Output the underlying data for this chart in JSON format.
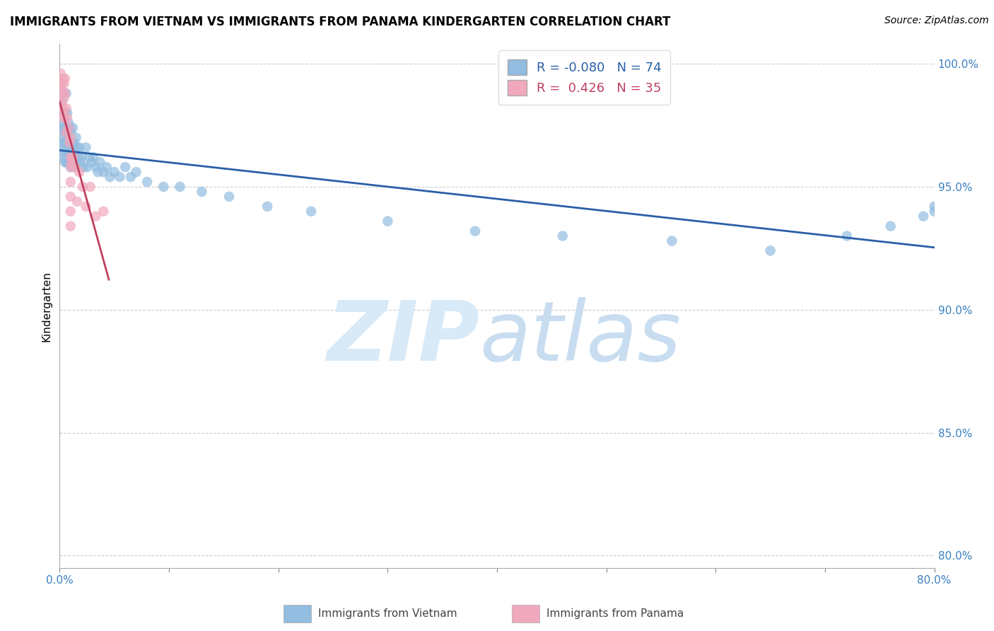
{
  "title": "IMMIGRANTS FROM VIETNAM VS IMMIGRANTS FROM PANAMA KINDERGARTEN CORRELATION CHART",
  "source": "Source: ZipAtlas.com",
  "ylabel": "Kindergarten",
  "legend_label_vietnam": "Immigrants from Vietnam",
  "legend_label_panama": "Immigrants from Panama",
  "vietnam_color": "#92bce0",
  "panama_color": "#f0a8bc",
  "vietnam_line_color": "#2a5fa8",
  "panama_line_color": "#c04060",
  "R_vietnam": -0.08,
  "N_vietnam": 74,
  "R_panama": 0.426,
  "N_panama": 35,
  "xlim": [
    0.0,
    0.8
  ],
  "ylim": [
    0.795,
    1.008
  ],
  "ytick_positions": [
    0.8,
    0.85,
    0.9,
    0.95,
    1.0
  ],
  "xtick_positions": [
    0.0,
    0.1,
    0.2,
    0.3,
    0.4,
    0.5,
    0.6,
    0.7,
    0.8
  ],
  "vietnam_x": [
    0.001,
    0.001,
    0.002,
    0.002,
    0.002,
    0.003,
    0.003,
    0.003,
    0.004,
    0.004,
    0.005,
    0.005,
    0.005,
    0.006,
    0.006,
    0.006,
    0.007,
    0.007,
    0.007,
    0.008,
    0.008,
    0.009,
    0.009,
    0.01,
    0.01,
    0.01,
    0.011,
    0.011,
    0.012,
    0.012,
    0.013,
    0.013,
    0.014,
    0.015,
    0.015,
    0.016,
    0.017,
    0.018,
    0.019,
    0.02,
    0.022,
    0.024,
    0.025,
    0.027,
    0.029,
    0.031,
    0.033,
    0.035,
    0.037,
    0.04,
    0.043,
    0.046,
    0.05,
    0.055,
    0.06,
    0.065,
    0.07,
    0.08,
    0.095,
    0.11,
    0.13,
    0.155,
    0.19,
    0.23,
    0.3,
    0.38,
    0.46,
    0.56,
    0.65,
    0.72,
    0.76,
    0.79,
    0.8,
    0.8
  ],
  "vietnam_y": [
    0.974,
    0.97,
    0.976,
    0.966,
    0.985,
    0.988,
    0.968,
    0.962,
    0.974,
    0.964,
    0.98,
    0.972,
    0.96,
    0.988,
    0.968,
    0.96,
    0.98,
    0.972,
    0.96,
    0.976,
    0.964,
    0.974,
    0.966,
    0.972,
    0.964,
    0.958,
    0.968,
    0.96,
    0.974,
    0.964,
    0.968,
    0.958,
    0.964,
    0.97,
    0.96,
    0.966,
    0.962,
    0.966,
    0.96,
    0.962,
    0.958,
    0.966,
    0.958,
    0.962,
    0.96,
    0.962,
    0.958,
    0.956,
    0.96,
    0.956,
    0.958,
    0.954,
    0.956,
    0.954,
    0.958,
    0.954,
    0.956,
    0.952,
    0.95,
    0.95,
    0.948,
    0.946,
    0.942,
    0.94,
    0.936,
    0.932,
    0.93,
    0.928,
    0.924,
    0.93,
    0.934,
    0.938,
    0.94,
    0.942
  ],
  "panama_x": [
    0.001,
    0.001,
    0.001,
    0.002,
    0.002,
    0.003,
    0.003,
    0.003,
    0.004,
    0.004,
    0.004,
    0.005,
    0.005,
    0.006,
    0.006,
    0.007,
    0.008,
    0.009,
    0.01,
    0.011,
    0.012,
    0.014,
    0.016,
    0.018,
    0.021,
    0.024,
    0.028,
    0.033,
    0.04,
    0.01,
    0.01,
    0.01,
    0.01,
    0.01,
    0.01
  ],
  "panama_y": [
    0.99,
    0.996,
    0.984,
    0.992,
    0.98,
    0.994,
    0.988,
    0.982,
    0.992,
    0.986,
    0.978,
    0.994,
    0.988,
    0.982,
    0.972,
    0.978,
    0.974,
    0.968,
    0.97,
    0.96,
    0.962,
    0.958,
    0.944,
    0.956,
    0.95,
    0.942,
    0.95,
    0.938,
    0.94,
    0.962,
    0.958,
    0.952,
    0.946,
    0.94,
    0.934
  ]
}
